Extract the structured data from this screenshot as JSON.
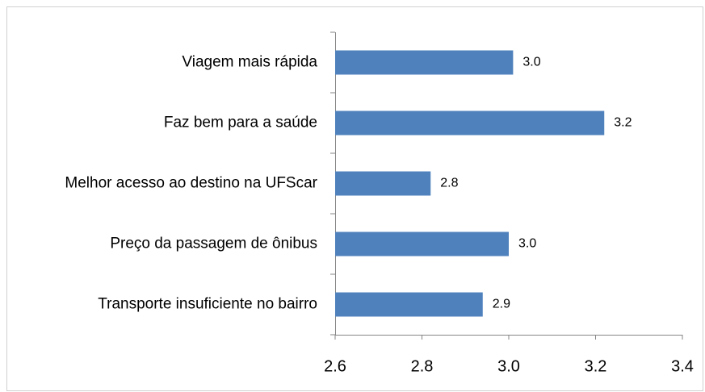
{
  "chart_data": {
    "type": "bar",
    "orientation": "horizontal",
    "categories": [
      "Viagem mais rápida",
      "Faz bem para a saúde",
      "Melhor acesso ao destino na UFScar",
      "Preço da passagem de ônibus",
      "Transporte insuficiente no bairro"
    ],
    "values": [
      3.01,
      3.22,
      2.82,
      3.0,
      2.94
    ],
    "value_labels": [
      "3.0",
      "3.2",
      "2.8",
      "3.0",
      "2.9"
    ],
    "color": "#4f81bd",
    "xlim": [
      2.6,
      3.4
    ],
    "xticks": [
      2.6,
      2.8,
      {
        "value": 3,
        "label": "3.0"
      },
      3.2,
      3.4
    ],
    "grid": false
  }
}
